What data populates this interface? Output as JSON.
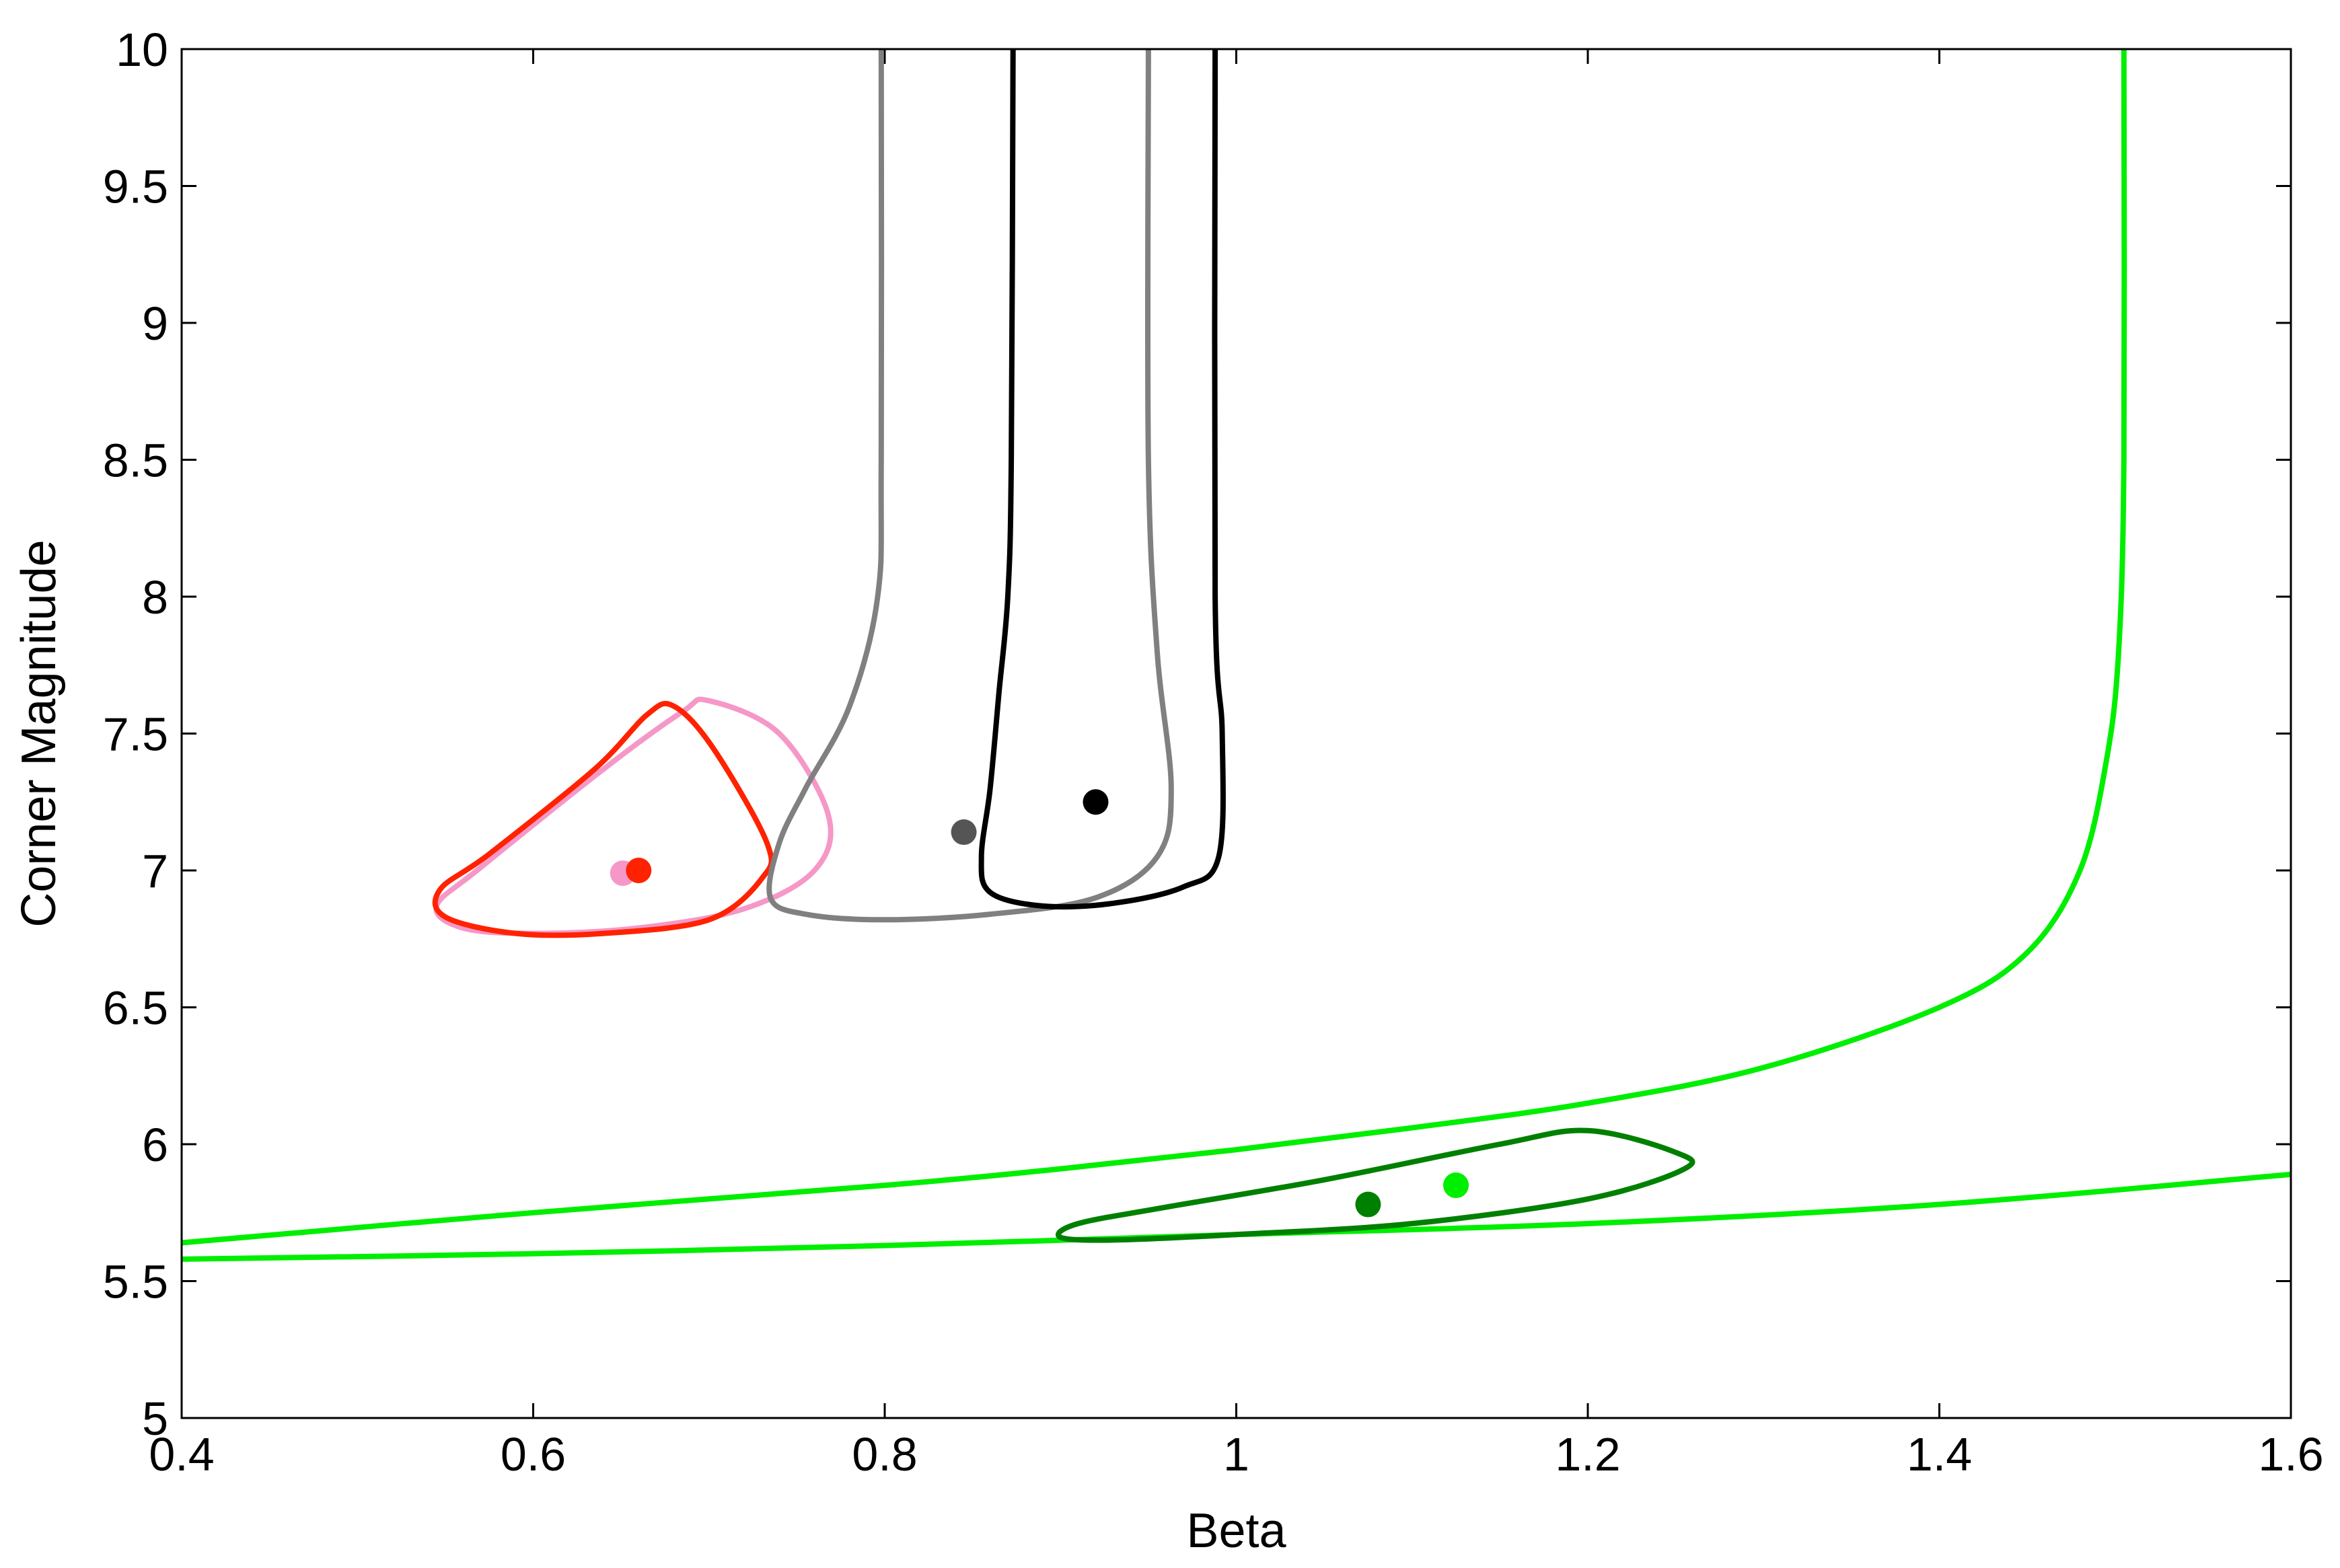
{
  "chart_data": {
    "type": "line",
    "title": "",
    "xlabel": "Beta",
    "ylabel": "Corner Magnitude",
    "xlim": [
      0.4,
      1.6
    ],
    "ylim": [
      5,
      10
    ],
    "xticks": [
      0.4,
      0.6,
      0.8,
      1.0,
      1.2,
      1.4,
      1.6
    ],
    "xtick_labels": [
      "0.4",
      "0.6",
      "0.8",
      "1",
      "1.2",
      "1.4",
      "1.6"
    ],
    "yticks": [
      5,
      5.5,
      6,
      6.5,
      7,
      7.5,
      8,
      8.5,
      9,
      9.5,
      10
    ],
    "ytick_labels": [
      "5",
      "5.5",
      "6",
      "6.5",
      "7",
      "7.5",
      "8",
      "8.5",
      "9",
      "9.5",
      "10"
    ],
    "grid": false,
    "legend": "none",
    "series": [
      {
        "color": "#f598c8",
        "kind": "contour",
        "closed": true,
        "points": [
          [
            0.7,
            7.62
          ],
          [
            0.74,
            7.5
          ],
          [
            0.768,
            7.2
          ],
          [
            0.76,
            7.0
          ],
          [
            0.72,
            6.86
          ],
          [
            0.66,
            6.79
          ],
          [
            0.6,
            6.77
          ],
          [
            0.56,
            6.79
          ],
          [
            0.545,
            6.87
          ],
          [
            0.57,
            7.01
          ],
          [
            0.64,
            7.37
          ],
          [
            0.685,
            7.58
          ]
        ],
        "best_fit": [
          0.651,
          6.99
        ]
      },
      {
        "color": "#ff2200",
        "kind": "contour",
        "closed": true,
        "points": [
          [
            0.68,
            7.6
          ],
          [
            0.702,
            7.45
          ],
          [
            0.733,
            7.1
          ],
          [
            0.73,
            6.97
          ],
          [
            0.7,
            6.82
          ],
          [
            0.64,
            6.77
          ],
          [
            0.59,
            6.77
          ],
          [
            0.55,
            6.83
          ],
          [
            0.547,
            6.93
          ],
          [
            0.575,
            7.06
          ],
          [
            0.635,
            7.37
          ],
          [
            0.665,
            7.57
          ]
        ],
        "best_fit": [
          0.66,
          7.0
        ]
      },
      {
        "color": "#808080",
        "kind": "contour",
        "closed": false,
        "points": [
          [
            0.798,
            10.0
          ],
          [
            0.798,
            8.5
          ],
          [
            0.796,
            8.0
          ],
          [
            0.78,
            7.6
          ],
          [
            0.755,
            7.3
          ],
          [
            0.74,
            7.1
          ],
          [
            0.735,
            6.9
          ],
          [
            0.755,
            6.84
          ],
          [
            0.8,
            6.82
          ],
          [
            0.86,
            6.84
          ],
          [
            0.92,
            6.9
          ],
          [
            0.955,
            7.05
          ],
          [
            0.963,
            7.3
          ],
          [
            0.955,
            7.8
          ],
          [
            0.95,
            8.5
          ],
          [
            0.95,
            10.0
          ]
        ],
        "best_fit": [
          0.845,
          7.14
        ]
      },
      {
        "color": "#000000",
        "kind": "contour",
        "closed": false,
        "points": [
          [
            0.873,
            10.0
          ],
          [
            0.872,
            8.5
          ],
          [
            0.87,
            8.0
          ],
          [
            0.865,
            7.65
          ],
          [
            0.86,
            7.3
          ],
          [
            0.855,
            7.05
          ],
          [
            0.86,
            6.92
          ],
          [
            0.89,
            6.87
          ],
          [
            0.93,
            6.88
          ],
          [
            0.97,
            6.94
          ],
          [
            0.99,
            7.05
          ],
          [
            0.992,
            7.5
          ],
          [
            0.988,
            8.0
          ],
          [
            0.988,
            10.0
          ]
        ],
        "best_fit": [
          0.92,
          7.25
        ]
      },
      {
        "color": "#00ee00",
        "kind": "contour",
        "closed": false,
        "points": [
          [
            1.505,
            10.0
          ],
          [
            1.505,
            8.5
          ],
          [
            1.502,
            7.8
          ],
          [
            1.495,
            7.4
          ],
          [
            1.48,
            7.0
          ],
          [
            1.45,
            6.7
          ],
          [
            1.4,
            6.5
          ],
          [
            1.3,
            6.28
          ],
          [
            1.2,
            6.15
          ],
          [
            1.1,
            6.06
          ],
          [
            1.0,
            5.98
          ],
          [
            0.9,
            5.91
          ],
          [
            0.8,
            5.85
          ],
          [
            0.6,
            5.75
          ],
          [
            0.4,
            5.64
          ]
        ],
        "best_fit": [
          1.125,
          5.85
        ]
      },
      {
        "color": "#00ee00",
        "kind": "contour",
        "closed": false,
        "points": [
          [
            0.4,
            5.58
          ],
          [
            0.6,
            5.6
          ],
          [
            0.8,
            5.63
          ],
          [
            1.0,
            5.67
          ],
          [
            1.2,
            5.71
          ],
          [
            1.4,
            5.78
          ],
          [
            1.6,
            5.89
          ]
        ],
        "best_fit": null
      },
      {
        "color": "#008000",
        "kind": "contour",
        "closed": true,
        "points": [
          [
            1.2,
            6.05
          ],
          [
            1.25,
            5.97
          ],
          [
            1.255,
            5.91
          ],
          [
            1.2,
            5.8
          ],
          [
            1.1,
            5.71
          ],
          [
            1.0,
            5.67
          ],
          [
            0.93,
            5.65
          ],
          [
            0.9,
            5.66
          ],
          [
            0.91,
            5.71
          ],
          [
            0.96,
            5.77
          ],
          [
            1.05,
            5.87
          ],
          [
            1.15,
            6.0
          ]
        ],
        "best_fit": [
          1.075,
          5.78
        ]
      }
    ]
  }
}
